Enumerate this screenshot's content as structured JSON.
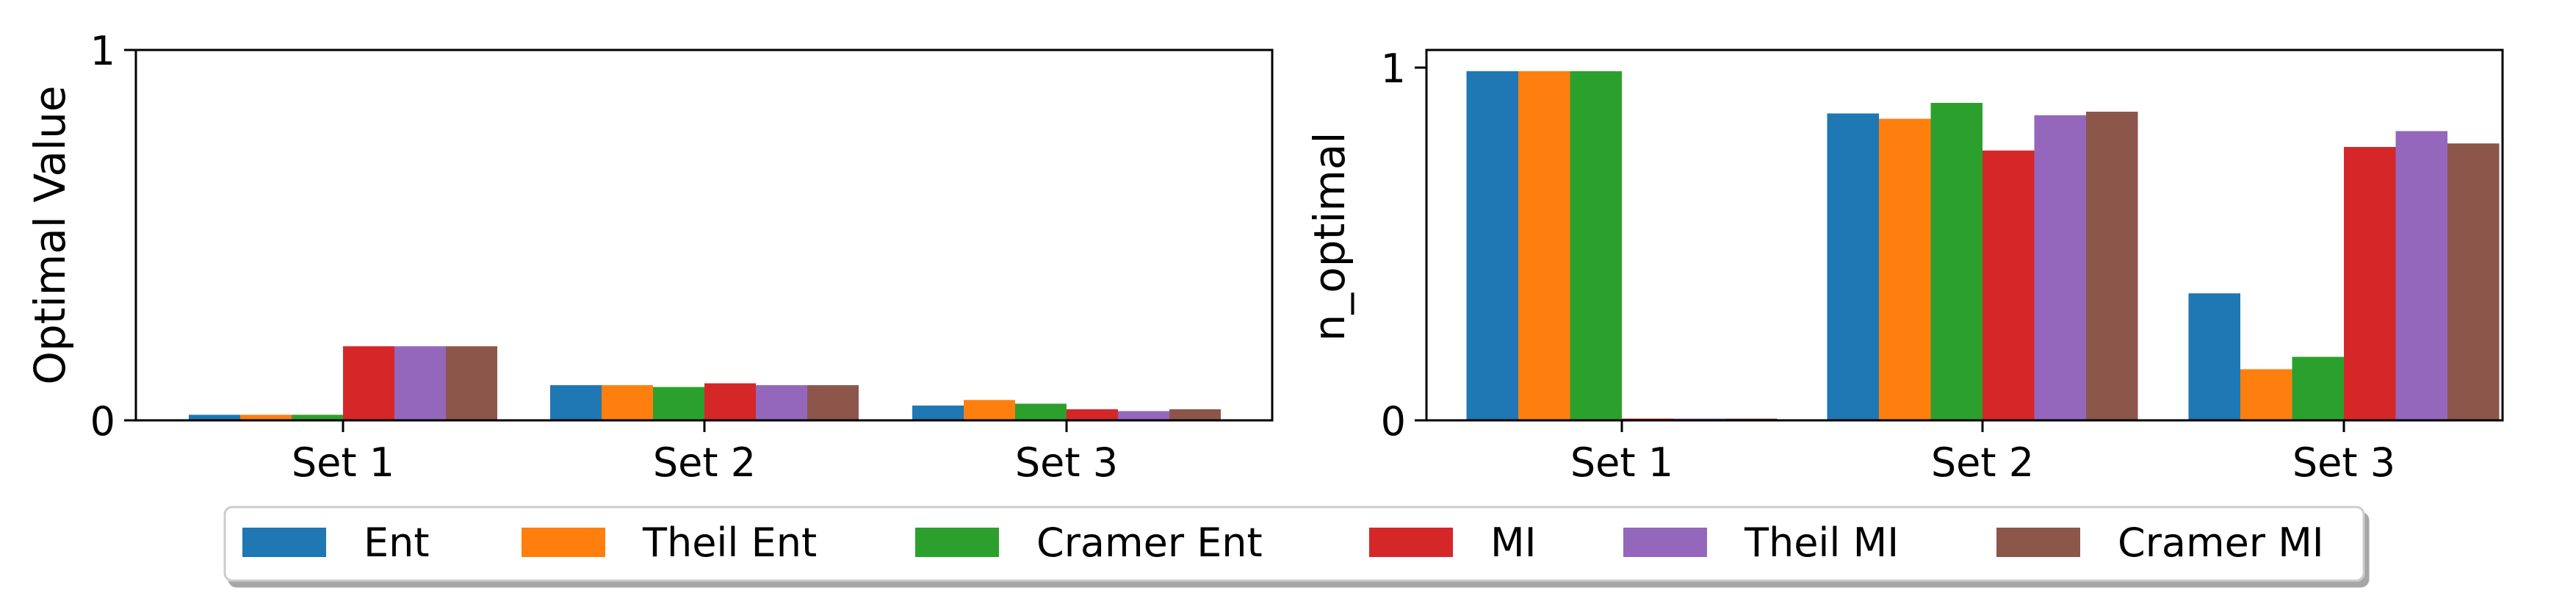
{
  "chart_data": [
    {
      "type": "bar",
      "title": "",
      "xlabel": "",
      "ylabel": "Optimal Value",
      "ylim": [
        0,
        1
      ],
      "yticks": [
        "0",
        "1"
      ],
      "categories": [
        "Set 1",
        "Set 2",
        "Set 3"
      ],
      "grid": false,
      "series": [
        {
          "name": "Ent",
          "values": [
            0.015,
            0.095,
            0.04
          ]
        },
        {
          "name": "Theil Ent",
          "values": [
            0.015,
            0.095,
            0.055
          ]
        },
        {
          "name": "Cramer Ent",
          "values": [
            0.015,
            0.09,
            0.045
          ]
        },
        {
          "name": "MI",
          "values": [
            0.2,
            0.1,
            0.03
          ]
        },
        {
          "name": "Theil MI",
          "values": [
            0.2,
            0.095,
            0.025
          ]
        },
        {
          "name": "Cramer MI",
          "values": [
            0.2,
            0.095,
            0.03
          ]
        }
      ]
    },
    {
      "type": "bar",
      "title": "",
      "xlabel": "",
      "ylabel": "n_optimal",
      "ylim": [
        0,
        1.05
      ],
      "yticks": [
        "0",
        "1"
      ],
      "categories": [
        "Set 1",
        "Set 2",
        "Set 3"
      ],
      "grid": false,
      "series": [
        {
          "name": "Ent",
          "values": [
            0.99,
            0.87,
            0.36
          ]
        },
        {
          "name": "Theil Ent",
          "values": [
            0.99,
            0.855,
            0.145
          ]
        },
        {
          "name": "Cramer Ent",
          "values": [
            0.99,
            0.9,
            0.18
          ]
        },
        {
          "name": "MI",
          "values": [
            0.005,
            0.765,
            0.775
          ]
        },
        {
          "name": "Theil MI",
          "values": [
            0.005,
            0.865,
            0.82
          ]
        },
        {
          "name": "Cramer MI",
          "values": [
            0.005,
            0.875,
            0.785
          ]
        }
      ]
    }
  ],
  "colors": [
    "#1f77b4",
    "#ff7f0e",
    "#2ca02c",
    "#d62728",
    "#9467bd",
    "#8c564b"
  ],
  "legend": {
    "placement": "bottom-center",
    "entries": [
      "Ent",
      "Theil Ent",
      "Cramer Ent",
      "MI",
      "Theil MI",
      "Cramer MI"
    ]
  }
}
